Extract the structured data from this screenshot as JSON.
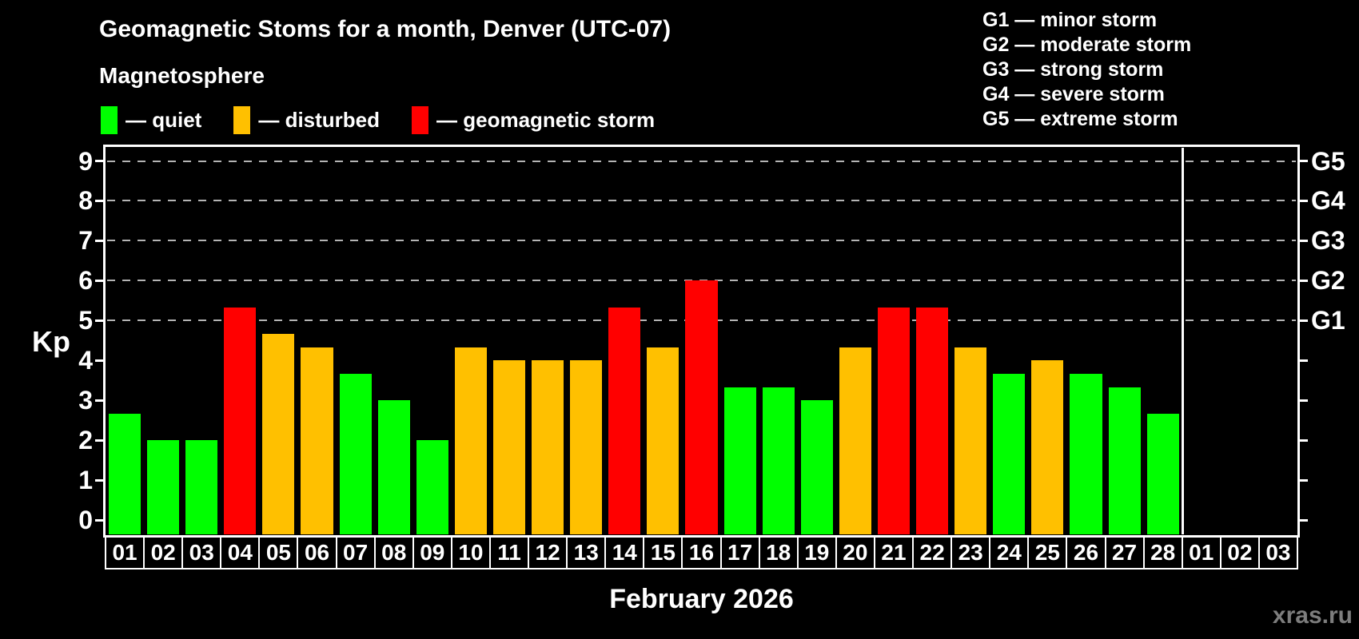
{
  "header": {
    "title": "Geomagnetic Stoms for a month, Denver (UTC-07)",
    "subtitle": "Magnetosphere"
  },
  "legend": {
    "items": [
      {
        "label": "— quiet",
        "status": "quiet",
        "color": "#00ff00"
      },
      {
        "label": "— disturbed",
        "status": "disturbed",
        "color": "#ffc000"
      },
      {
        "label": "— geomagnetic storm",
        "status": "storm",
        "color": "#ff0000"
      }
    ]
  },
  "g_legend": {
    "items": [
      "G1 — minor storm",
      "G2 — moderate storm",
      "G3 — strong storm",
      "G4 — severe storm",
      "G5 — extreme storm"
    ]
  },
  "footer": {
    "month_label": "February 2026",
    "watermark": "xras.ru"
  },
  "chart_data": {
    "type": "bar",
    "title": "Geomagnetic Stoms for a month, Denver (UTC-07)",
    "xlabel": "February 2026",
    "ylabel": "Kp",
    "ylim": [
      0,
      9
    ],
    "y_ticks": [
      0,
      1,
      2,
      3,
      4,
      5,
      6,
      7,
      8,
      9
    ],
    "grid_levels": [
      5,
      6,
      7,
      8,
      9
    ],
    "grid_style": "dashed",
    "legend_position": "top-left",
    "g_axis": [
      {
        "label": "G5",
        "kp": 9
      },
      {
        "label": "G4",
        "kp": 8
      },
      {
        "label": "G3",
        "kp": 7
      },
      {
        "label": "G2",
        "kp": 6
      },
      {
        "label": "G1",
        "kp": 5
      }
    ],
    "days": [
      {
        "label": "01",
        "kp": 2.67,
        "status": "quiet"
      },
      {
        "label": "02",
        "kp": 2.0,
        "status": "quiet"
      },
      {
        "label": "03",
        "kp": 2.0,
        "status": "quiet"
      },
      {
        "label": "04",
        "kp": 5.33,
        "status": "storm"
      },
      {
        "label": "05",
        "kp": 4.67,
        "status": "disturbed"
      },
      {
        "label": "06",
        "kp": 4.33,
        "status": "disturbed"
      },
      {
        "label": "07",
        "kp": 3.67,
        "status": "quiet"
      },
      {
        "label": "08",
        "kp": 3.0,
        "status": "quiet"
      },
      {
        "label": "09",
        "kp": 2.0,
        "status": "quiet"
      },
      {
        "label": "10",
        "kp": 4.33,
        "status": "disturbed"
      },
      {
        "label": "11",
        "kp": 4.0,
        "status": "disturbed"
      },
      {
        "label": "12",
        "kp": 4.0,
        "status": "disturbed"
      },
      {
        "label": "13",
        "kp": 4.0,
        "status": "disturbed"
      },
      {
        "label": "14",
        "kp": 5.33,
        "status": "storm"
      },
      {
        "label": "15",
        "kp": 4.33,
        "status": "disturbed"
      },
      {
        "label": "16",
        "kp": 6.0,
        "status": "storm"
      },
      {
        "label": "17",
        "kp": 3.33,
        "status": "quiet"
      },
      {
        "label": "18",
        "kp": 3.33,
        "status": "quiet"
      },
      {
        "label": "19",
        "kp": 3.0,
        "status": "quiet"
      },
      {
        "label": "20",
        "kp": 4.33,
        "status": "disturbed"
      },
      {
        "label": "21",
        "kp": 5.33,
        "status": "storm"
      },
      {
        "label": "22",
        "kp": 5.33,
        "status": "storm"
      },
      {
        "label": "23",
        "kp": 4.33,
        "status": "disturbed"
      },
      {
        "label": "24",
        "kp": 3.67,
        "status": "quiet"
      },
      {
        "label": "25",
        "kp": 4.0,
        "status": "disturbed"
      },
      {
        "label": "26",
        "kp": 3.67,
        "status": "quiet"
      },
      {
        "label": "27",
        "kp": 3.33,
        "status": "quiet"
      },
      {
        "label": "28",
        "kp": 2.67,
        "status": "quiet"
      },
      {
        "label": "01",
        "kp": null,
        "status": null
      },
      {
        "label": "02",
        "kp": null,
        "status": null
      },
      {
        "label": "03",
        "kp": null,
        "status": null
      }
    ]
  }
}
